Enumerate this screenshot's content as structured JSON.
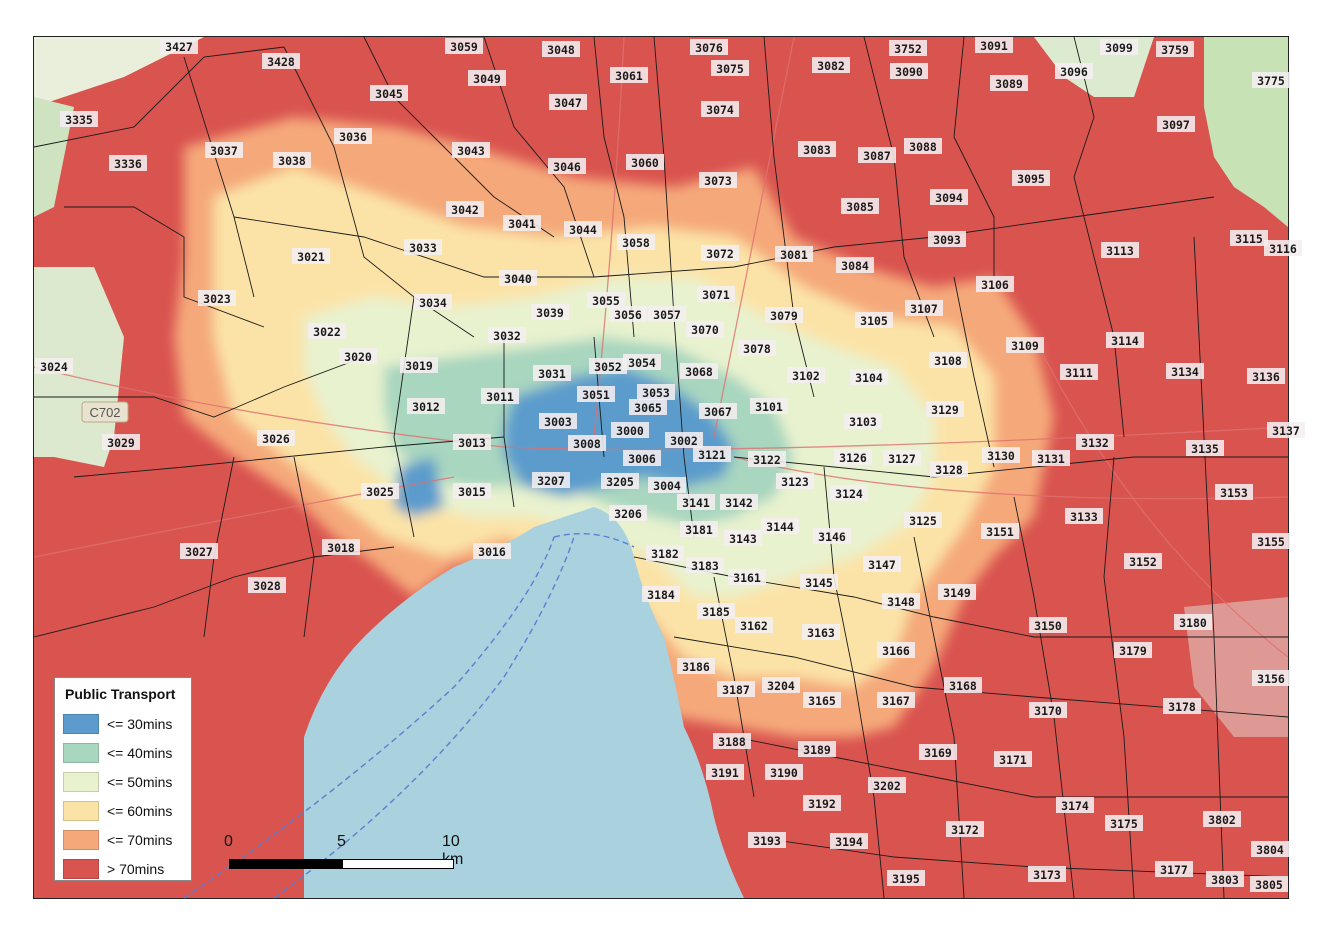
{
  "legend": {
    "title": "Public Transport",
    "items": [
      {
        "label": "<= 30mins",
        "color": "#5b9ccc"
      },
      {
        "label": "<= 40mins",
        "color": "#a8d6bf"
      },
      {
        "label": "<= 50mins",
        "color": "#e8f2cf"
      },
      {
        "label": "<= 60mins",
        "color": "#fbe3a7"
      },
      {
        "label": "<= 70mins",
        "color": "#f5a97a"
      },
      {
        "label": "> 70mins",
        "color": "#d9534f"
      }
    ]
  },
  "scale": {
    "label_0": "0",
    "label_5": "5",
    "label_10": "10 km"
  },
  "road_label": "C702",
  "postcodes": [
    "3427",
    "3059",
    "3048",
    "3076",
    "3752",
    "3091",
    "3099",
    "3759",
    "3428",
    "3049",
    "3061",
    "3075",
    "3082",
    "3090",
    "3096",
    "3775",
    "3045",
    "3047",
    "3074",
    "3089",
    "3335",
    "3036",
    "3097",
    "3037",
    "3038",
    "3043",
    "3046",
    "3060",
    "3083",
    "3087",
    "3088",
    "3095",
    "3336",
    "3073",
    "3094",
    "3042",
    "3041",
    "3044",
    "3085",
    "3093",
    "3021",
    "3033",
    "3058",
    "3072",
    "3081",
    "3113",
    "3115",
    "3116",
    "3084",
    "3040",
    "3106",
    "3023",
    "3034",
    "3055",
    "3071",
    "3039",
    "3056",
    "3057",
    "3079",
    "3107",
    "3032",
    "3070",
    "3105",
    "3022",
    "3114",
    "3020",
    "3078",
    "3109",
    "3052",
    "3054",
    "3019",
    "3108",
    "3024",
    "3031",
    "3068",
    "3111",
    "3134",
    "3136",
    "3051",
    "3053",
    "3102",
    "3104",
    "3011",
    "3012",
    "3065",
    "3101",
    "3067",
    "3129",
    "3003",
    "3103",
    "3137",
    "3013",
    "3000",
    "3002",
    "3026",
    "3008",
    "3132",
    "3029",
    "3135",
    "3121",
    "3006",
    "3126",
    "3127",
    "3130",
    "3131",
    "3122",
    "3128",
    "3207",
    "3123",
    "3205",
    "3025",
    "3004",
    "3015",
    "3124",
    "3153",
    "3141",
    "3142",
    "3133",
    "3206",
    "3181",
    "3144",
    "3125",
    "3151",
    "3143",
    "3146",
    "3155",
    "3027",
    "3018",
    "3016",
    "3182",
    "3147",
    "3183",
    "3152",
    "3161",
    "3145",
    "3028",
    "3149",
    "3184",
    "3148",
    "3185",
    "3162",
    "3163",
    "3150",
    "3180",
    "3179",
    "3166",
    "3186",
    "3156",
    "3204",
    "3187",
    "3165",
    "3167",
    "3168",
    "3170",
    "3178",
    "3188",
    "3189",
    "3169",
    "3171",
    "3191",
    "3190",
    "3202",
    "3192",
    "3174",
    "3175",
    "3802",
    "3172",
    "3193",
    "3194",
    "3804",
    "3173",
    "3177",
    "3195",
    "3803",
    "3805"
  ]
}
